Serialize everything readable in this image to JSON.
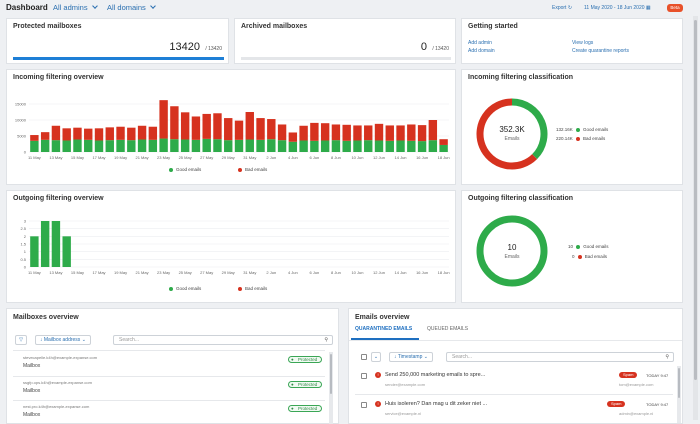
{
  "header": {
    "title": "Dashboard",
    "admins_dropdown": "All admins",
    "domains_dropdown": "All domains",
    "export_label": "Export",
    "date_range": "11 May 2020 - 18 Jun 2020",
    "beta_badge": "Beta"
  },
  "protected": {
    "title": "Protected mailboxes",
    "value": "13420",
    "total": "/ 13420",
    "progress": 1.0
  },
  "archived": {
    "title": "Archived mailboxes",
    "value": "0",
    "total": "/ 13420",
    "progress": 0.0
  },
  "getting_started": {
    "title": "Getting started",
    "links": [
      "Add admin",
      "Add domain",
      "View logs",
      "Create quarantine reports"
    ]
  },
  "incoming_overview": {
    "title": "Incoming filtering overview",
    "legend_good": "Good emails",
    "legend_bad": "Bad emails",
    "y_ticks": [
      "15000",
      "10000",
      "5000",
      "0"
    ]
  },
  "incoming_class": {
    "title": "Incoming filtering classification",
    "center_value": "352.3K",
    "center_label": "Emails",
    "good_value": "132.16K",
    "good_label": "Good emails",
    "bad_value": "220.14K",
    "bad_label": "Bad emails"
  },
  "outgoing_overview": {
    "title": "Outgoing filtering overview",
    "legend_good": "Good emails",
    "legend_bad": "Bad emails",
    "y_ticks": [
      "3",
      "2.5",
      "2",
      "1.5",
      "1",
      "0.5",
      "0"
    ]
  },
  "outgoing_class": {
    "title": "Outgoing filtering classification",
    "center_value": "10",
    "center_label": "Emails",
    "good_value": "10",
    "good_label": "Good emails",
    "bad_value": "0",
    "bad_label": "Bad emails"
  },
  "mailboxes": {
    "title": "Mailboxes overview",
    "sort_label": "Mailbox address",
    "search_placeholder": "Search...",
    "rows": [
      {
        "address": "stevecapelle.k4h@example-expanse.com",
        "type": "Mailbox",
        "status": "Protected"
      },
      {
        "address": "ssgfp.ops.k4h@example-expanse.com",
        "type": "Mailbox",
        "status": "Protected"
      },
      {
        "address": "nest.pro.k4h@example-expanse.com",
        "type": "Mailbox",
        "status": "Protected"
      }
    ]
  },
  "emails": {
    "title": "Emails overview",
    "tab_quarantined": "QUARANTINED EMAILS",
    "tab_queued": "QUEUED EMAILS",
    "sort_label": "Timestamp",
    "search_placeholder": "Search...",
    "rows": [
      {
        "subject": "Send 250,000 marketing emails to spre...",
        "from": "sender@example.com",
        "to": "tom@example.com",
        "tag": "Spam",
        "time": "TODAY 9:47"
      },
      {
        "subject": "Huis isoleren? Dan mag u dit zeker niet ...",
        "from": "service@example.nl",
        "to": "admin@example.nl",
        "tag": "Spam",
        "time": "TODAY 9:47"
      }
    ]
  },
  "chart_data": [
    {
      "type": "bar",
      "title": "Incoming filtering overview",
      "x_tick_labels": [
        "11 May",
        "13 May",
        "15 May",
        "17 May",
        "19 May",
        "21 May",
        "23 May",
        "25 May",
        "27 May",
        "29 May",
        "31 May",
        "2 Jun",
        "4 Jun",
        "6 Jun",
        "8 Jun",
        "10 Jun",
        "12 Jun",
        "14 Jun",
        "16 Jun",
        "18 Jun"
      ],
      "categories": [
        "11 May",
        "12 May",
        "13 May",
        "14 May",
        "15 May",
        "16 May",
        "17 May",
        "18 May",
        "19 May",
        "20 May",
        "21 May",
        "22 May",
        "23 May",
        "24 May",
        "25 May",
        "26 May",
        "27 May",
        "28 May",
        "29 May",
        "30 May",
        "31 May",
        "1 Jun",
        "2 Jun",
        "3 Jun",
        "4 Jun",
        "5 Jun",
        "6 Jun",
        "7 Jun",
        "8 Jun",
        "9 Jun",
        "10 Jun",
        "11 Jun",
        "12 Jun",
        "13 Jun",
        "14 Jun",
        "15 Jun",
        "16 Jun",
        "17 Jun",
        "18 Jun"
      ],
      "series": [
        {
          "name": "Good emails",
          "color": "#2eab4a",
          "values": [
            3500,
            3800,
            3700,
            3600,
            3900,
            3800,
            3600,
            3700,
            3800,
            3700,
            3900,
            3800,
            4200,
            4000,
            3900,
            3800,
            4100,
            4000,
            3700,
            3800,
            3900,
            3800,
            4000,
            3700,
            3200,
            3600,
            3500,
            3600,
            3700,
            3500,
            3600,
            3700,
            3600,
            3500,
            3600,
            3500,
            3400,
            3700,
            2200
          ]
        },
        {
          "name": "Bad emails",
          "color": "#d6321f",
          "values": [
            1800,
            2400,
            4500,
            3800,
            3700,
            3500,
            3800,
            4000,
            4100,
            3900,
            4300,
            4100,
            12000,
            10300,
            8500,
            7300,
            7800,
            8100,
            6900,
            6000,
            8600,
            6800,
            6300,
            4900,
            2900,
            4600,
            5600,
            5400,
            4900,
            5000,
            4700,
            4600,
            5200,
            4800,
            4700,
            5100,
            5000,
            6300,
            1800
          ]
        }
      ],
      "ylim": [
        0,
        15000
      ],
      "legend": "bottom"
    },
    {
      "type": "pie",
      "title": "Incoming filtering classification",
      "series": [
        {
          "name": "Good emails",
          "value": 132.16,
          "color": "#2eab4a"
        },
        {
          "name": "Bad emails",
          "value": 220.14,
          "color": "#d6321f"
        }
      ]
    },
    {
      "type": "bar",
      "title": "Outgoing filtering overview",
      "x_tick_labels": [
        "11 May",
        "13 May",
        "15 May",
        "17 May",
        "19 May",
        "21 May",
        "23 May",
        "25 May",
        "27 May",
        "29 May",
        "31 May",
        "2 Jun",
        "4 Jun",
        "6 Jun",
        "8 Jun",
        "10 Jun",
        "12 Jun",
        "14 Jun",
        "16 Jun",
        "18 Jun"
      ],
      "categories": [
        "11 May",
        "12 May",
        "13 May",
        "14 May",
        "15 May",
        "16 May",
        "17 May",
        "18 May",
        "19 May",
        "20 May",
        "21 May",
        "22 May",
        "23 May",
        "24 May",
        "25 May",
        "26 May",
        "27 May",
        "28 May",
        "29 May",
        "30 May",
        "31 May",
        "1 Jun",
        "2 Jun",
        "3 Jun",
        "4 Jun",
        "5 Jun",
        "6 Jun",
        "7 Jun",
        "8 Jun",
        "9 Jun",
        "10 Jun",
        "11 Jun",
        "12 Jun",
        "13 Jun",
        "14 Jun",
        "15 Jun",
        "16 Jun",
        "17 Jun",
        "18 Jun"
      ],
      "series": [
        {
          "name": "Good emails",
          "color": "#2eab4a",
          "values": [
            2,
            3,
            3,
            2,
            0,
            0,
            0,
            0,
            0,
            0,
            0,
            0,
            0,
            0,
            0,
            0,
            0,
            0,
            0,
            0,
            0,
            0,
            0,
            0,
            0,
            0,
            0,
            0,
            0,
            0,
            0,
            0,
            0,
            0,
            0,
            0,
            0,
            0,
            0
          ]
        },
        {
          "name": "Bad emails",
          "color": "#d6321f",
          "values": [
            0,
            0,
            0,
            0,
            0,
            0,
            0,
            0,
            0,
            0,
            0,
            0,
            0,
            0,
            0,
            0,
            0,
            0,
            0,
            0,
            0,
            0,
            0,
            0,
            0,
            0,
            0,
            0,
            0,
            0,
            0,
            0,
            0,
            0,
            0,
            0,
            0,
            0,
            0
          ]
        }
      ],
      "ylim": [
        0,
        3
      ],
      "legend": "bottom"
    },
    {
      "type": "pie",
      "title": "Outgoing filtering classification",
      "series": [
        {
          "name": "Good emails",
          "value": 10,
          "color": "#2eab4a"
        },
        {
          "name": "Bad emails",
          "value": 0,
          "color": "#d6321f"
        }
      ]
    }
  ]
}
